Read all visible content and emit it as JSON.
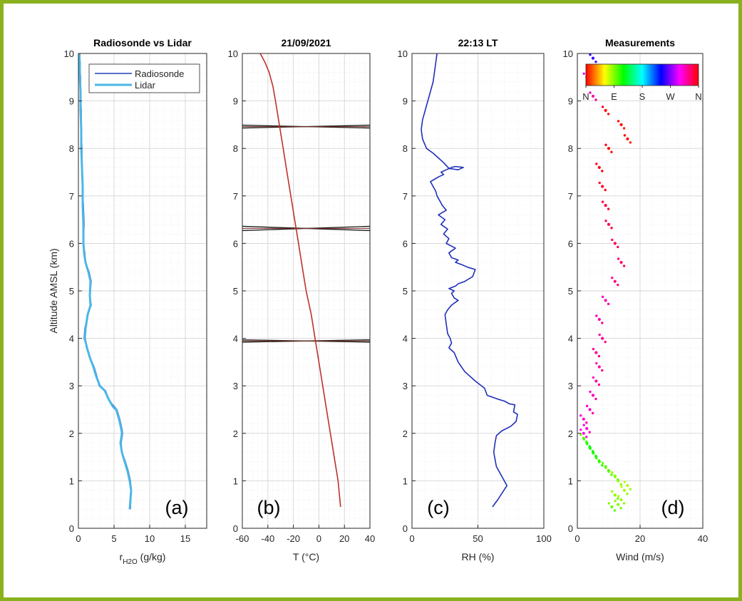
{
  "ylabel": "Altitude AMSL (km)",
  "chart_data": [
    {
      "type": "line",
      "title": "Radiosonde vs Lidar",
      "panel": "(a)",
      "xlabel_main": "r",
      "xlabel_sub": "H2O",
      "xlabel_unit": " (g/kg)",
      "xlim": [
        0,
        18
      ],
      "xticks": [
        "0",
        "5",
        "10",
        "15"
      ],
      "ylim": [
        0,
        10
      ],
      "yticks": [
        "0",
        "1",
        "2",
        "3",
        "4",
        "5",
        "6",
        "7",
        "8",
        "9",
        "10"
      ],
      "legend": {
        "position": "top-right",
        "entries": [
          "Radiosonde",
          "Lidar"
        ]
      },
      "series": [
        {
          "name": "Radiosonde",
          "color": "#1f3fb8",
          "x": [
            7.3,
            7.4,
            7.3,
            7.0,
            6.6,
            6.1,
            6.0,
            6.2,
            6.1,
            5.8,
            5.4,
            5.1,
            4.3,
            3.8,
            2.9,
            2.6,
            2.2,
            1.6,
            1.2,
            0.8,
            0.9,
            1.3,
            1.8,
            1.6,
            1.8,
            1.5,
            1.0,
            0.9,
            0.7,
            0.8,
            0.7,
            0.6,
            0.5,
            0.5,
            0.4,
            0.4,
            0.3,
            0.3,
            0.2,
            0.2
          ],
          "y": [
            0.4,
            0.8,
            1.0,
            1.2,
            1.4,
            1.6,
            1.8,
            2.0,
            2.1,
            2.3,
            2.5,
            2.55,
            2.7,
            2.9,
            3.0,
            3.2,
            3.4,
            3.6,
            3.8,
            4.0,
            4.2,
            4.5,
            4.7,
            4.9,
            5.2,
            5.4,
            5.6,
            5.8,
            6.0,
            6.4,
            6.8,
            7.2,
            7.6,
            8.0,
            8.4,
            8.8,
            9.2,
            9.5,
            9.8,
            10.0
          ]
        },
        {
          "name": "Lidar",
          "color": "#4ab6e6",
          "x": [
            7.2,
            7.4,
            7.2,
            6.9,
            6.5,
            6.1,
            5.9,
            6.1,
            6.0,
            5.7,
            5.3,
            4.9,
            4.3,
            3.7,
            3.0,
            2.5,
            2.1,
            1.6,
            1.2,
            0.9,
            1.0,
            1.3,
            1.7,
            1.6,
            1.7,
            1.4,
            1.0,
            0.8,
            0.7,
            0.7,
            0.6,
            0.6,
            0.5,
            0.4,
            0.4,
            0.3,
            0.3,
            0.2,
            0.2,
            0.1
          ],
          "y": [
            0.4,
            0.8,
            1.0,
            1.2,
            1.4,
            1.6,
            1.8,
            2.0,
            2.1,
            2.3,
            2.5,
            2.55,
            2.7,
            2.9,
            3.0,
            3.2,
            3.4,
            3.6,
            3.8,
            4.0,
            4.2,
            4.5,
            4.7,
            4.9,
            5.2,
            5.4,
            5.6,
            5.8,
            6.0,
            6.4,
            6.8,
            7.2,
            7.6,
            8.0,
            8.4,
            8.8,
            9.2,
            9.5,
            9.8,
            10.0
          ]
        }
      ]
    },
    {
      "type": "line",
      "title": "21/09/2021",
      "panel": "(b)",
      "xlabel": "T (°C)",
      "xlim": [
        -60,
        40
      ],
      "xticks": [
        "-60",
        "-40",
        "-20",
        "0",
        "20",
        "40"
      ],
      "ylim": [
        0,
        10
      ],
      "yticks": [
        "0",
        "1",
        "2",
        "3",
        "4",
        "5",
        "6",
        "7",
        "8",
        "9",
        "10"
      ],
      "series": [
        {
          "color": "#c0302a",
          "x": [
            17,
            15,
            12,
            9,
            6,
            3,
            0,
            -3,
            -6,
            -10,
            -13,
            -16,
            -19,
            -22,
            -25,
            -28,
            -31,
            -34,
            -36,
            -39,
            -42,
            -46
          ],
          "y": [
            0.45,
            1.0,
            1.5,
            2.0,
            2.5,
            3.0,
            3.5,
            4.0,
            4.5,
            5.0,
            5.5,
            6.0,
            6.5,
            7.0,
            7.5,
            8.0,
            8.5,
            9.0,
            9.3,
            9.6,
            9.8,
            10.0
          ]
        }
      ],
      "horizontal_bands": [
        {
          "y": [
            8.43,
            8.49
          ],
          "color": "#1a1a1a"
        },
        {
          "y": [
            6.27,
            6.36
          ],
          "color": "#1a1a1a"
        },
        {
          "y": [
            3.92,
            3.97
          ],
          "color": "#1a1a1a"
        }
      ]
    },
    {
      "type": "line",
      "title": "22:13 LT",
      "panel": "(c)",
      "xlabel": "RH (%)",
      "xlim": [
        0,
        100
      ],
      "xticks": [
        "0",
        "50",
        "100"
      ],
      "ylim": [
        0,
        10
      ],
      "yticks": [
        "0",
        "1",
        "2",
        "3",
        "4",
        "5",
        "6",
        "7",
        "8",
        "9",
        "10"
      ],
      "series": [
        {
          "color": "#1f2fb8",
          "x": [
            61,
            65,
            72,
            68,
            64,
            62,
            63,
            64,
            68,
            75,
            79,
            80,
            77,
            78,
            74,
            70,
            65,
            57,
            55,
            48,
            40,
            35,
            32,
            28,
            30,
            29,
            27,
            26,
            25,
            27,
            30,
            35,
            32,
            31,
            30,
            32,
            28,
            33,
            35,
            40,
            46,
            48,
            42,
            38,
            33,
            35,
            30,
            28,
            33,
            26,
            28,
            24,
            27,
            22,
            25,
            20,
            26,
            23,
            21,
            19,
            18,
            16,
            14,
            17,
            20,
            24,
            22,
            26,
            30,
            33,
            39,
            35,
            28,
            24,
            20,
            16,
            11,
            8,
            7,
            8,
            10,
            12,
            14,
            16,
            17,
            18,
            19
          ],
          "y": [
            0.45,
            0.6,
            0.9,
            1.1,
            1.3,
            1.6,
            1.8,
            1.95,
            2.05,
            2.15,
            2.25,
            2.4,
            2.45,
            2.6,
            2.62,
            2.68,
            2.72,
            2.8,
            2.95,
            3.1,
            3.3,
            3.5,
            3.7,
            3.8,
            3.9,
            4.0,
            4.1,
            4.3,
            4.5,
            4.6,
            4.7,
            4.8,
            4.85,
            4.9,
            4.95,
            5.0,
            5.05,
            5.1,
            5.15,
            5.2,
            5.3,
            5.45,
            5.5,
            5.55,
            5.6,
            5.65,
            5.7,
            5.8,
            5.9,
            6.0,
            6.1,
            6.2,
            6.3,
            6.4,
            6.5,
            6.6,
            6.7,
            6.8,
            6.9,
            7.0,
            7.1,
            7.2,
            7.3,
            7.35,
            7.4,
            7.45,
            7.5,
            7.55,
            7.6,
            7.62,
            7.6,
            7.55,
            7.58,
            7.7,
            7.8,
            7.9,
            8.0,
            8.2,
            8.4,
            8.6,
            8.8,
            9.0,
            9.2,
            9.4,
            9.6,
            9.8,
            10.0
          ]
        }
      ]
    },
    {
      "type": "scatter",
      "title": "Measurements",
      "panel": "(d)",
      "xlabel": "Wind (m/s)",
      "xlim": [
        0,
        40
      ],
      "xticks": [
        "0",
        "20",
        "40"
      ],
      "ylim": [
        0,
        10
      ],
      "yticks": [
        "0",
        "1",
        "2",
        "3",
        "4",
        "5",
        "6",
        "7",
        "8",
        "9",
        "10"
      ],
      "colorbar": {
        "position": "top",
        "labels": [
          "N",
          "E",
          "S",
          "W",
          "N"
        ]
      },
      "points": [
        {
          "x": 11,
          "y": 0.45,
          "dir": 95
        },
        {
          "x": 13,
          "y": 0.5,
          "dir": 90
        },
        {
          "x": 14,
          "y": 0.6,
          "dir": 85
        },
        {
          "x": 12,
          "y": 0.7,
          "dir": 88
        },
        {
          "x": 15,
          "y": 0.8,
          "dir": 82
        },
        {
          "x": 16,
          "y": 0.9,
          "dir": 80
        },
        {
          "x": 13,
          "y": 1.0,
          "dir": 86
        },
        {
          "x": 12,
          "y": 1.1,
          "dir": 90
        },
        {
          "x": 10,
          "y": 1.2,
          "dir": 96
        },
        {
          "x": 9,
          "y": 1.3,
          "dir": 100
        },
        {
          "x": 7,
          "y": 1.4,
          "dir": 105
        },
        {
          "x": 6,
          "y": 1.5,
          "dir": 110
        },
        {
          "x": 5,
          "y": 1.6,
          "dir": 115
        },
        {
          "x": 4,
          "y": 1.7,
          "dir": 120
        },
        {
          "x": 3,
          "y": 1.8,
          "dir": 112
        },
        {
          "x": 2,
          "y": 1.9,
          "dir": 100
        },
        {
          "x": 2,
          "y": 2.0,
          "dir": 305
        },
        {
          "x": 3,
          "y": 2.1,
          "dir": 308
        },
        {
          "x": 2,
          "y": 2.3,
          "dir": 312
        },
        {
          "x": 4,
          "y": 2.5,
          "dir": 315
        },
        {
          "x": 5,
          "y": 2.8,
          "dir": 318
        },
        {
          "x": 6,
          "y": 3.1,
          "dir": 320
        },
        {
          "x": 7,
          "y": 3.4,
          "dir": 322
        },
        {
          "x": 6,
          "y": 3.7,
          "dir": 325
        },
        {
          "x": 8,
          "y": 4.0,
          "dir": 325
        },
        {
          "x": 7,
          "y": 4.4,
          "dir": 322
        },
        {
          "x": 9,
          "y": 4.8,
          "dir": 318
        },
        {
          "x": 12,
          "y": 5.2,
          "dir": 330
        },
        {
          "x": 14,
          "y": 5.6,
          "dir": 335
        },
        {
          "x": 12,
          "y": 6.0,
          "dir": 338
        },
        {
          "x": 10,
          "y": 6.4,
          "dir": 340
        },
        {
          "x": 9,
          "y": 6.8,
          "dir": 345
        },
        {
          "x": 8,
          "y": 7.2,
          "dir": 350
        },
        {
          "x": 7,
          "y": 7.6,
          "dir": 355
        },
        {
          "x": 10,
          "y": 8.0,
          "dir": 0
        },
        {
          "x": 16,
          "y": 8.2,
          "dir": 5
        },
        {
          "x": 14,
          "y": 8.5,
          "dir": 3
        },
        {
          "x": 9,
          "y": 8.8,
          "dir": 0
        },
        {
          "x": 5,
          "y": 9.1,
          "dir": 320
        },
        {
          "x": 3,
          "y": 9.5,
          "dir": 300
        },
        {
          "x": 5,
          "y": 9.9,
          "dir": 255
        }
      ]
    }
  ]
}
